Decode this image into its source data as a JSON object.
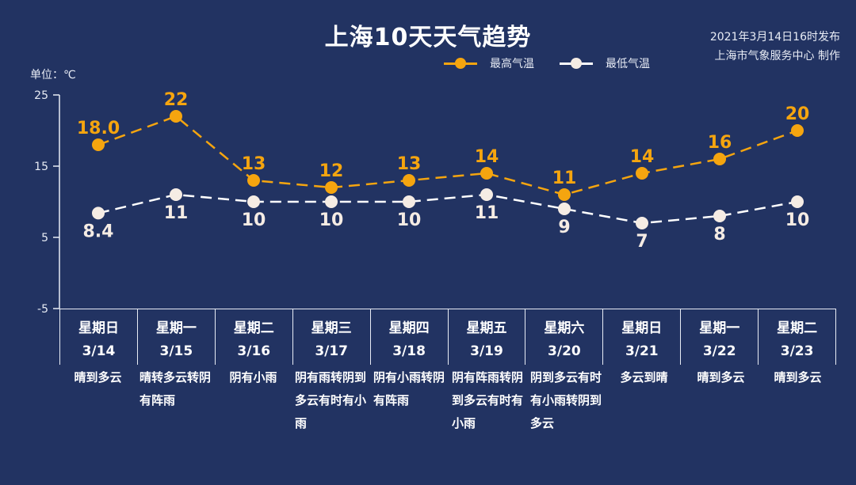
{
  "header": {
    "title": "上海10天天气趋势",
    "publish_time": "2021年3月14日16时发布",
    "producer": "上海市气象服务中心 制作",
    "unit_label": "单位：℃"
  },
  "legend": {
    "high_label": "最高气温",
    "low_label": "最低气温",
    "high_color": "#F5A50F",
    "low_color": "#F5ECE4"
  },
  "y_axis": {
    "ticks": [
      "25",
      "15",
      "5",
      "-5"
    ]
  },
  "days": [
    {
      "weekday": "星期日",
      "date": "3/14",
      "weather": "晴到多云"
    },
    {
      "weekday": "星期一",
      "date": "3/15",
      "weather": "晴转多云转阴有阵雨"
    },
    {
      "weekday": "星期二",
      "date": "3/16",
      "weather": "阴有小雨"
    },
    {
      "weekday": "星期三",
      "date": "3/17",
      "weather": "阴有雨转阴到多云有时有小雨"
    },
    {
      "weekday": "星期四",
      "date": "3/18",
      "weather": "阴有小雨转阴有阵雨"
    },
    {
      "weekday": "星期五",
      "date": "3/19",
      "weather": "阴有阵雨转阴到多云有时有小雨"
    },
    {
      "weekday": "星期六",
      "date": "3/20",
      "weather": "阴到多云有时有小雨转阴到多云"
    },
    {
      "weekday": "星期日",
      "date": "3/21",
      "weather": "多云到晴"
    },
    {
      "weekday": "星期一",
      "date": "3/22",
      "weather": "晴到多云"
    },
    {
      "weekday": "星期二",
      "date": "3/23",
      "weather": "晴到多云"
    }
  ],
  "chart_data": {
    "type": "line",
    "title": "上海10天天气趋势",
    "xlabel": "",
    "ylabel": "单位：℃",
    "ylim": [
      -5,
      25
    ],
    "yticks": [
      25,
      15,
      5,
      -5
    ],
    "grid": false,
    "legend_position": "top-right",
    "categories": [
      "3/14",
      "3/15",
      "3/16",
      "3/17",
      "3/18",
      "3/19",
      "3/20",
      "3/21",
      "3/22",
      "3/23"
    ],
    "series": [
      {
        "name": "最高气温",
        "color": "#F5A50F",
        "line_style": "dashed",
        "values": [
          18.0,
          22,
          13,
          12,
          13,
          14,
          11,
          14,
          16,
          20
        ],
        "labels": [
          "18.0",
          "22",
          "13",
          "12",
          "13",
          "14",
          "11",
          "14",
          "16",
          "20"
        ]
      },
      {
        "name": "最低气温",
        "color": "#F5ECE4",
        "line_style": "dashed",
        "values": [
          8.4,
          11,
          10,
          10,
          10,
          11,
          9,
          7,
          8,
          10
        ],
        "labels": [
          "8.4",
          "11",
          "10",
          "10",
          "10",
          "11",
          "9",
          "7",
          "8",
          "10"
        ]
      }
    ]
  }
}
